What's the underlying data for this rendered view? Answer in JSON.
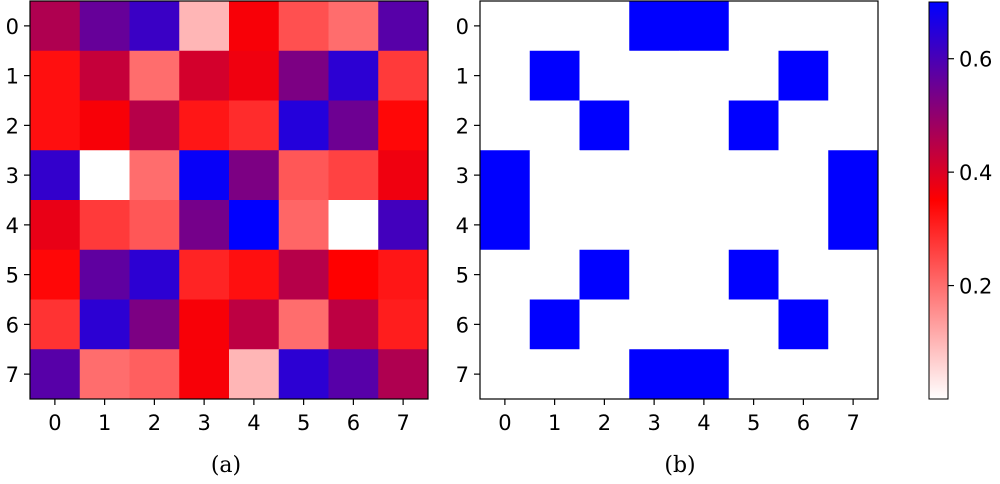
{
  "chart_data": [
    {
      "type": "heatmap",
      "caption": "(a)",
      "x_ticks": [
        "0",
        "1",
        "2",
        "3",
        "4",
        "5",
        "6",
        "7"
      ],
      "y_ticks": [
        "0",
        "1",
        "2",
        "3",
        "4",
        "5",
        "6",
        "7"
      ],
      "values": [
        [
          0.46,
          0.56,
          0.62,
          0.1,
          0.36,
          0.24,
          0.2,
          0.58
        ],
        [
          0.33,
          0.43,
          0.2,
          0.41,
          0.37,
          0.53,
          0.64,
          0.27
        ],
        [
          0.33,
          0.36,
          0.45,
          0.32,
          0.29,
          0.65,
          0.55,
          0.34
        ],
        [
          0.63,
          0.0,
          0.2,
          0.69,
          0.53,
          0.23,
          0.26,
          0.37
        ],
        [
          0.38,
          0.27,
          0.23,
          0.54,
          0.7,
          0.21,
          0.0,
          0.61
        ],
        [
          0.34,
          0.57,
          0.64,
          0.3,
          0.33,
          0.45,
          0.35,
          0.32
        ],
        [
          0.28,
          0.64,
          0.53,
          0.36,
          0.44,
          0.2,
          0.44,
          0.31
        ],
        [
          0.58,
          0.2,
          0.22,
          0.36,
          0.1,
          0.64,
          0.58,
          0.46
        ]
      ]
    },
    {
      "type": "heatmap",
      "caption": "(b)",
      "x_ticks": [
        "0",
        "1",
        "2",
        "3",
        "4",
        "5",
        "6",
        "7"
      ],
      "y_ticks": [
        "0",
        "1",
        "2",
        "3",
        "4",
        "5",
        "6",
        "7"
      ],
      "values": [
        [
          0,
          0,
          0,
          0.7,
          0.7,
          0,
          0,
          0
        ],
        [
          0,
          0.7,
          0,
          0,
          0,
          0,
          0.7,
          0
        ],
        [
          0,
          0,
          0.7,
          0,
          0,
          0.7,
          0,
          0
        ],
        [
          0.7,
          0,
          0,
          0,
          0,
          0,
          0,
          0.7
        ],
        [
          0.7,
          0,
          0,
          0,
          0,
          0,
          0,
          0.7
        ],
        [
          0,
          0,
          0.7,
          0,
          0,
          0.7,
          0,
          0
        ],
        [
          0,
          0.7,
          0,
          0,
          0,
          0,
          0.7,
          0
        ],
        [
          0,
          0,
          0,
          0.7,
          0.7,
          0,
          0,
          0
        ]
      ]
    }
  ],
  "colorbar": {
    "min": 0,
    "max": 0.7,
    "ticks": [
      0.2,
      0.4,
      0.6
    ],
    "tick_labels": [
      "0.2",
      "0.4",
      "0.6"
    ],
    "colors": [
      "#ffffff",
      "#ff0000",
      "#0000ff"
    ]
  }
}
